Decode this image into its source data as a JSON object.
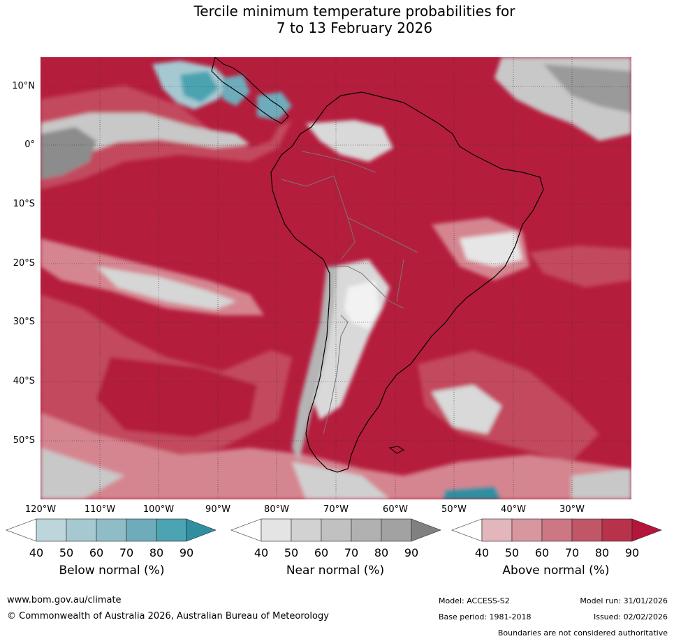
{
  "title": {
    "line1": "Tercile minimum temperature probabilities for",
    "line2": "7 to 13 February 2026"
  },
  "map": {
    "region": "South America",
    "lat_labels": [
      "10°N",
      "0°",
      "10°S",
      "20°S",
      "30°S",
      "40°S",
      "50°S"
    ],
    "lon_labels": [
      "120°W",
      "110°W",
      "100°W",
      "90°W",
      "80°W",
      "70°W",
      "60°W",
      "50°W",
      "40°W",
      "30°W"
    ],
    "lat_range": [
      -60,
      15
    ],
    "lon_range": [
      -120,
      -20
    ]
  },
  "legends": [
    {
      "name": "below",
      "title": "Below normal (%)",
      "ticks": [
        "40",
        "50",
        "60",
        "70",
        "80",
        "90"
      ],
      "colors": [
        "#ffffff",
        "#bdd6dc",
        "#a6c9d1",
        "#8ebcc7",
        "#6eacbb",
        "#4ca3b2",
        "#2f8fa1"
      ]
    },
    {
      "name": "near",
      "title": "Near normal (%)",
      "ticks": [
        "40",
        "50",
        "60",
        "70",
        "80",
        "90"
      ],
      "colors": [
        "#ffffff",
        "#e4e4e4",
        "#d2d2d2",
        "#c1c1c1",
        "#b1b1b1",
        "#a2a2a2",
        "#808080"
      ]
    },
    {
      "name": "above",
      "title": "Above normal (%)",
      "ticks": [
        "40",
        "50",
        "60",
        "70",
        "80",
        "90"
      ],
      "colors": [
        "#ffffff",
        "#e3b6bc",
        "#d8969f",
        "#cc7783",
        "#c15666",
        "#b8334a",
        "#b3163a"
      ]
    }
  ],
  "colors": {
    "above_strong": "#b51d3d",
    "above_mid": "#c34a5e",
    "above_light": "#d58590",
    "near": "#c9c9c9",
    "near_dark": "#8c8c8c",
    "below": "#2f8fa1"
  },
  "footer": {
    "url": "www.bom.gov.au/climate",
    "copyright": "© Commonwealth of Australia 2026, Australian Bureau of Meteorology",
    "model": "Model: ACCESS-S2",
    "base_period": "Base period: 1981-2018",
    "model_run": "Model run: 31/01/2026",
    "issued": "Issued: 02/02/2026",
    "disclaimer": "Boundaries are not considered authoritative"
  }
}
